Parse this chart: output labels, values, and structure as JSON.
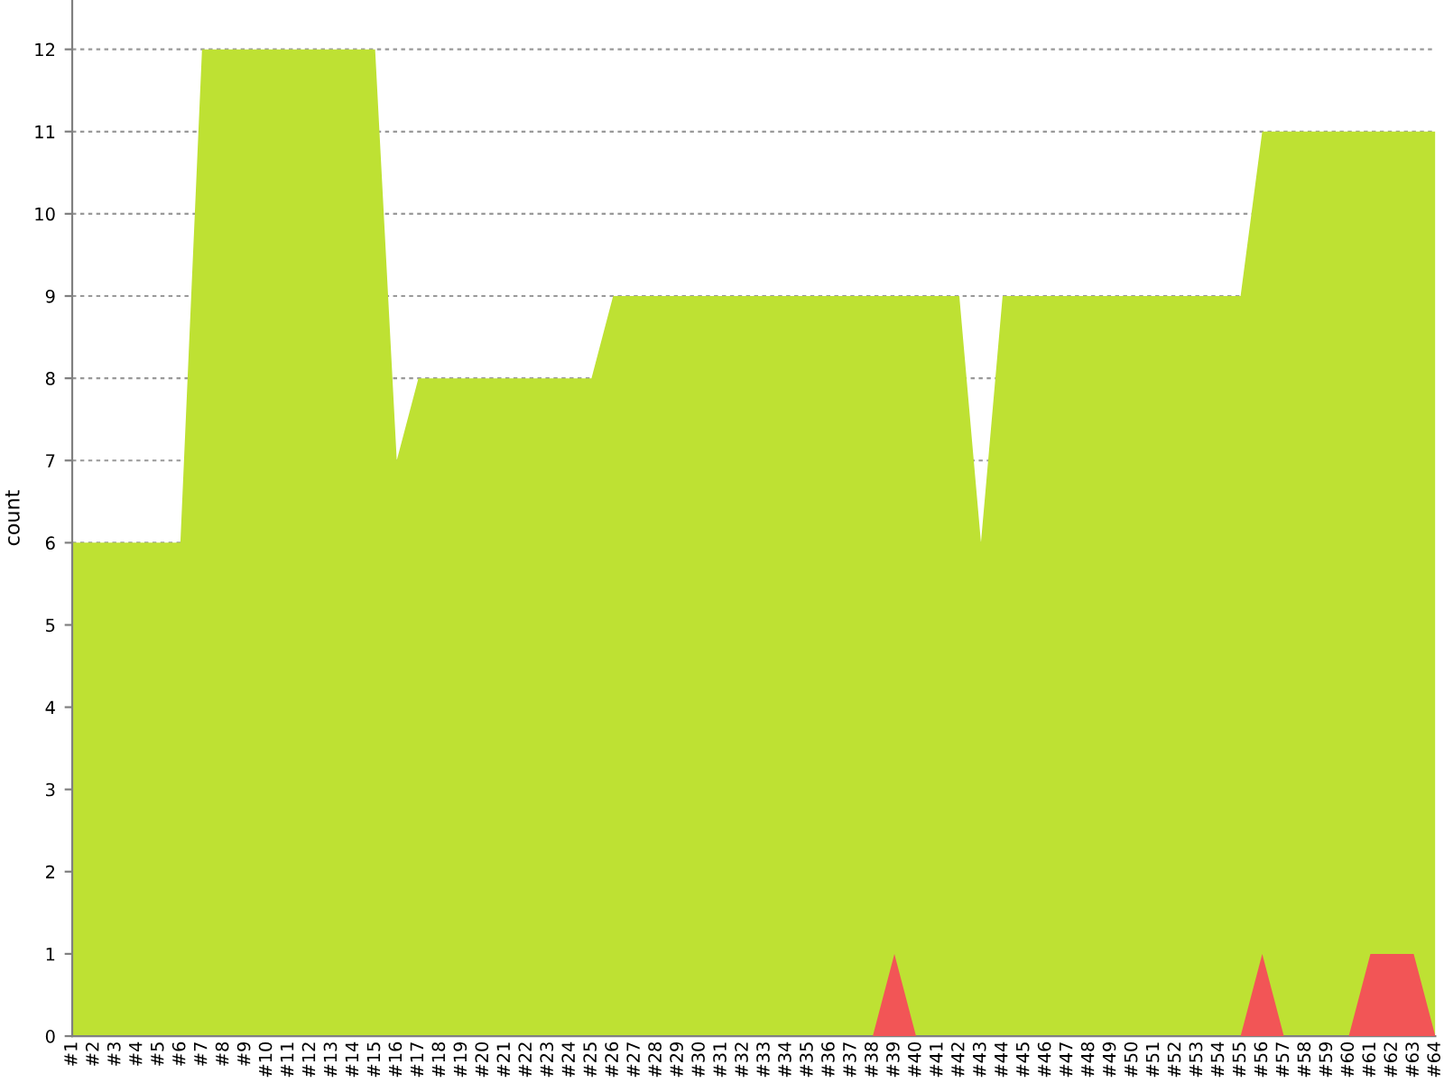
{
  "chart_data": {
    "type": "area",
    "ylabel": "count",
    "categories": [
      "#1",
      "#2",
      "#3",
      "#4",
      "#5",
      "#6",
      "#7",
      "#8",
      "#9",
      "#10",
      "#11",
      "#12",
      "#13",
      "#14",
      "#15",
      "#16",
      "#17",
      "#18",
      "#19",
      "#20",
      "#21",
      "#22",
      "#23",
      "#24",
      "#25",
      "#26",
      "#27",
      "#28",
      "#29",
      "#30",
      "#31",
      "#32",
      "#33",
      "#34",
      "#35",
      "#36",
      "#37",
      "#38",
      "#39",
      "#40",
      "#41",
      "#42",
      "#43",
      "#44",
      "#45",
      "#46",
      "#47",
      "#48",
      "#49",
      "#50",
      "#51",
      "#52",
      "#53",
      "#54",
      "#55",
      "#56",
      "#57",
      "#58",
      "#59",
      "#60",
      "#61",
      "#62",
      "#63",
      "#64"
    ],
    "series": [
      {
        "color": "#bee133",
        "values": [
          6,
          6,
          6,
          6,
          6,
          6,
          12,
          12,
          12,
          12,
          12,
          12,
          12,
          12,
          12,
          7,
          8,
          8,
          8,
          8,
          8,
          8,
          8,
          8,
          8,
          9,
          9,
          9,
          9,
          9,
          9,
          9,
          9,
          9,
          9,
          9,
          9,
          9,
          9,
          9,
          9,
          9,
          6,
          9,
          9,
          9,
          9,
          9,
          9,
          9,
          9,
          9,
          9,
          9,
          9,
          11,
          11,
          11,
          11,
          11,
          11,
          11,
          11,
          11
        ]
      },
      {
        "color": "#f25556",
        "values": [
          0,
          0,
          0,
          0,
          0,
          0,
          0,
          0,
          0,
          0,
          0,
          0,
          0,
          0,
          0,
          0,
          0,
          0,
          0,
          0,
          0,
          0,
          0,
          0,
          0,
          0,
          0,
          0,
          0,
          0,
          0,
          0,
          0,
          0,
          0,
          0,
          0,
          0,
          1,
          0,
          0,
          0,
          0,
          0,
          0,
          0,
          0,
          0,
          0,
          0,
          0,
          0,
          0,
          0,
          0,
          1,
          0,
          0,
          0,
          0,
          1,
          1,
          1,
          0
        ]
      }
    ],
    "ylim": [
      0,
      12.6
    ],
    "yticks": [
      0,
      1,
      2,
      3,
      4,
      5,
      6,
      7,
      8,
      9,
      10,
      11,
      12
    ],
    "grid": "y"
  }
}
